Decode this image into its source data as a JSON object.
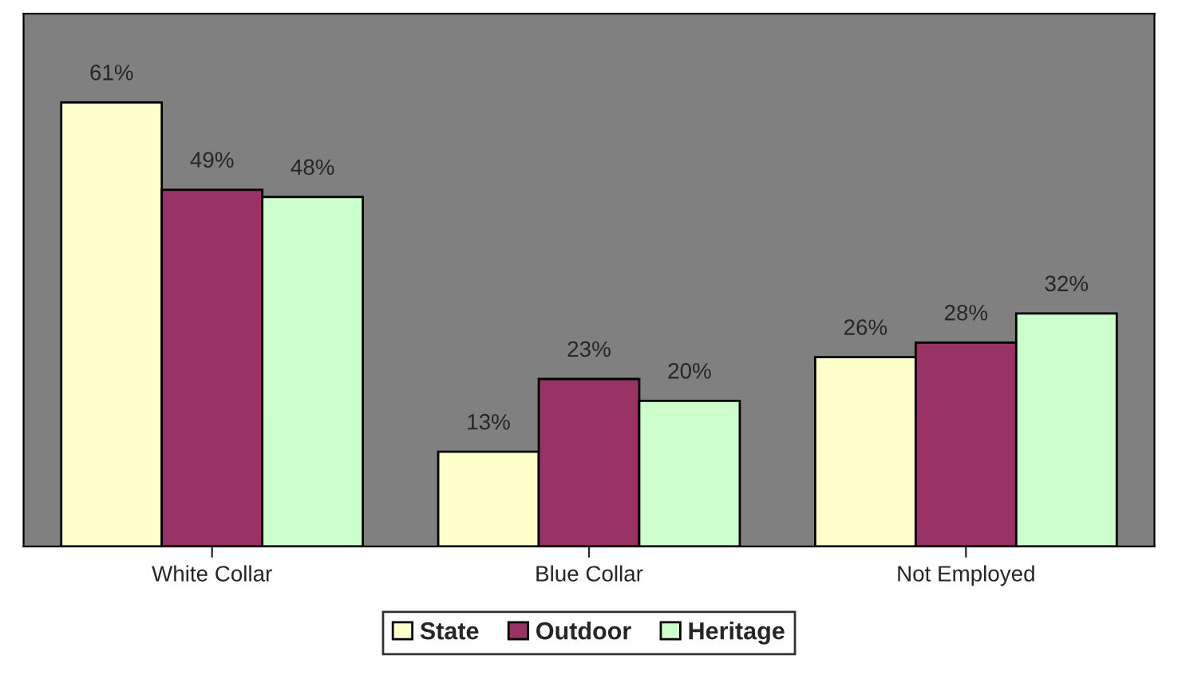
{
  "chart_data": {
    "type": "bar",
    "categories": [
      "White Collar",
      "Blue Collar",
      "Not Employed"
    ],
    "series": [
      {
        "name": "State",
        "color": "#ffffcc",
        "values": [
          61,
          13,
          26
        ],
        "value_labels": [
          "61%",
          "13%",
          "26%"
        ]
      },
      {
        "name": "Outdoor",
        "color": "#993366",
        "values": [
          49,
          23,
          28
        ],
        "value_labels": [
          "49%",
          "23%",
          "28%"
        ]
      },
      {
        "name": "Heritage",
        "color": "#ccffcc",
        "values": [
          48,
          20,
          32
        ],
        "value_labels": [
          "48%",
          "20%",
          "32%"
        ]
      }
    ],
    "tick_labels": "x",
    "grid": false,
    "legend": "bottom"
  }
}
